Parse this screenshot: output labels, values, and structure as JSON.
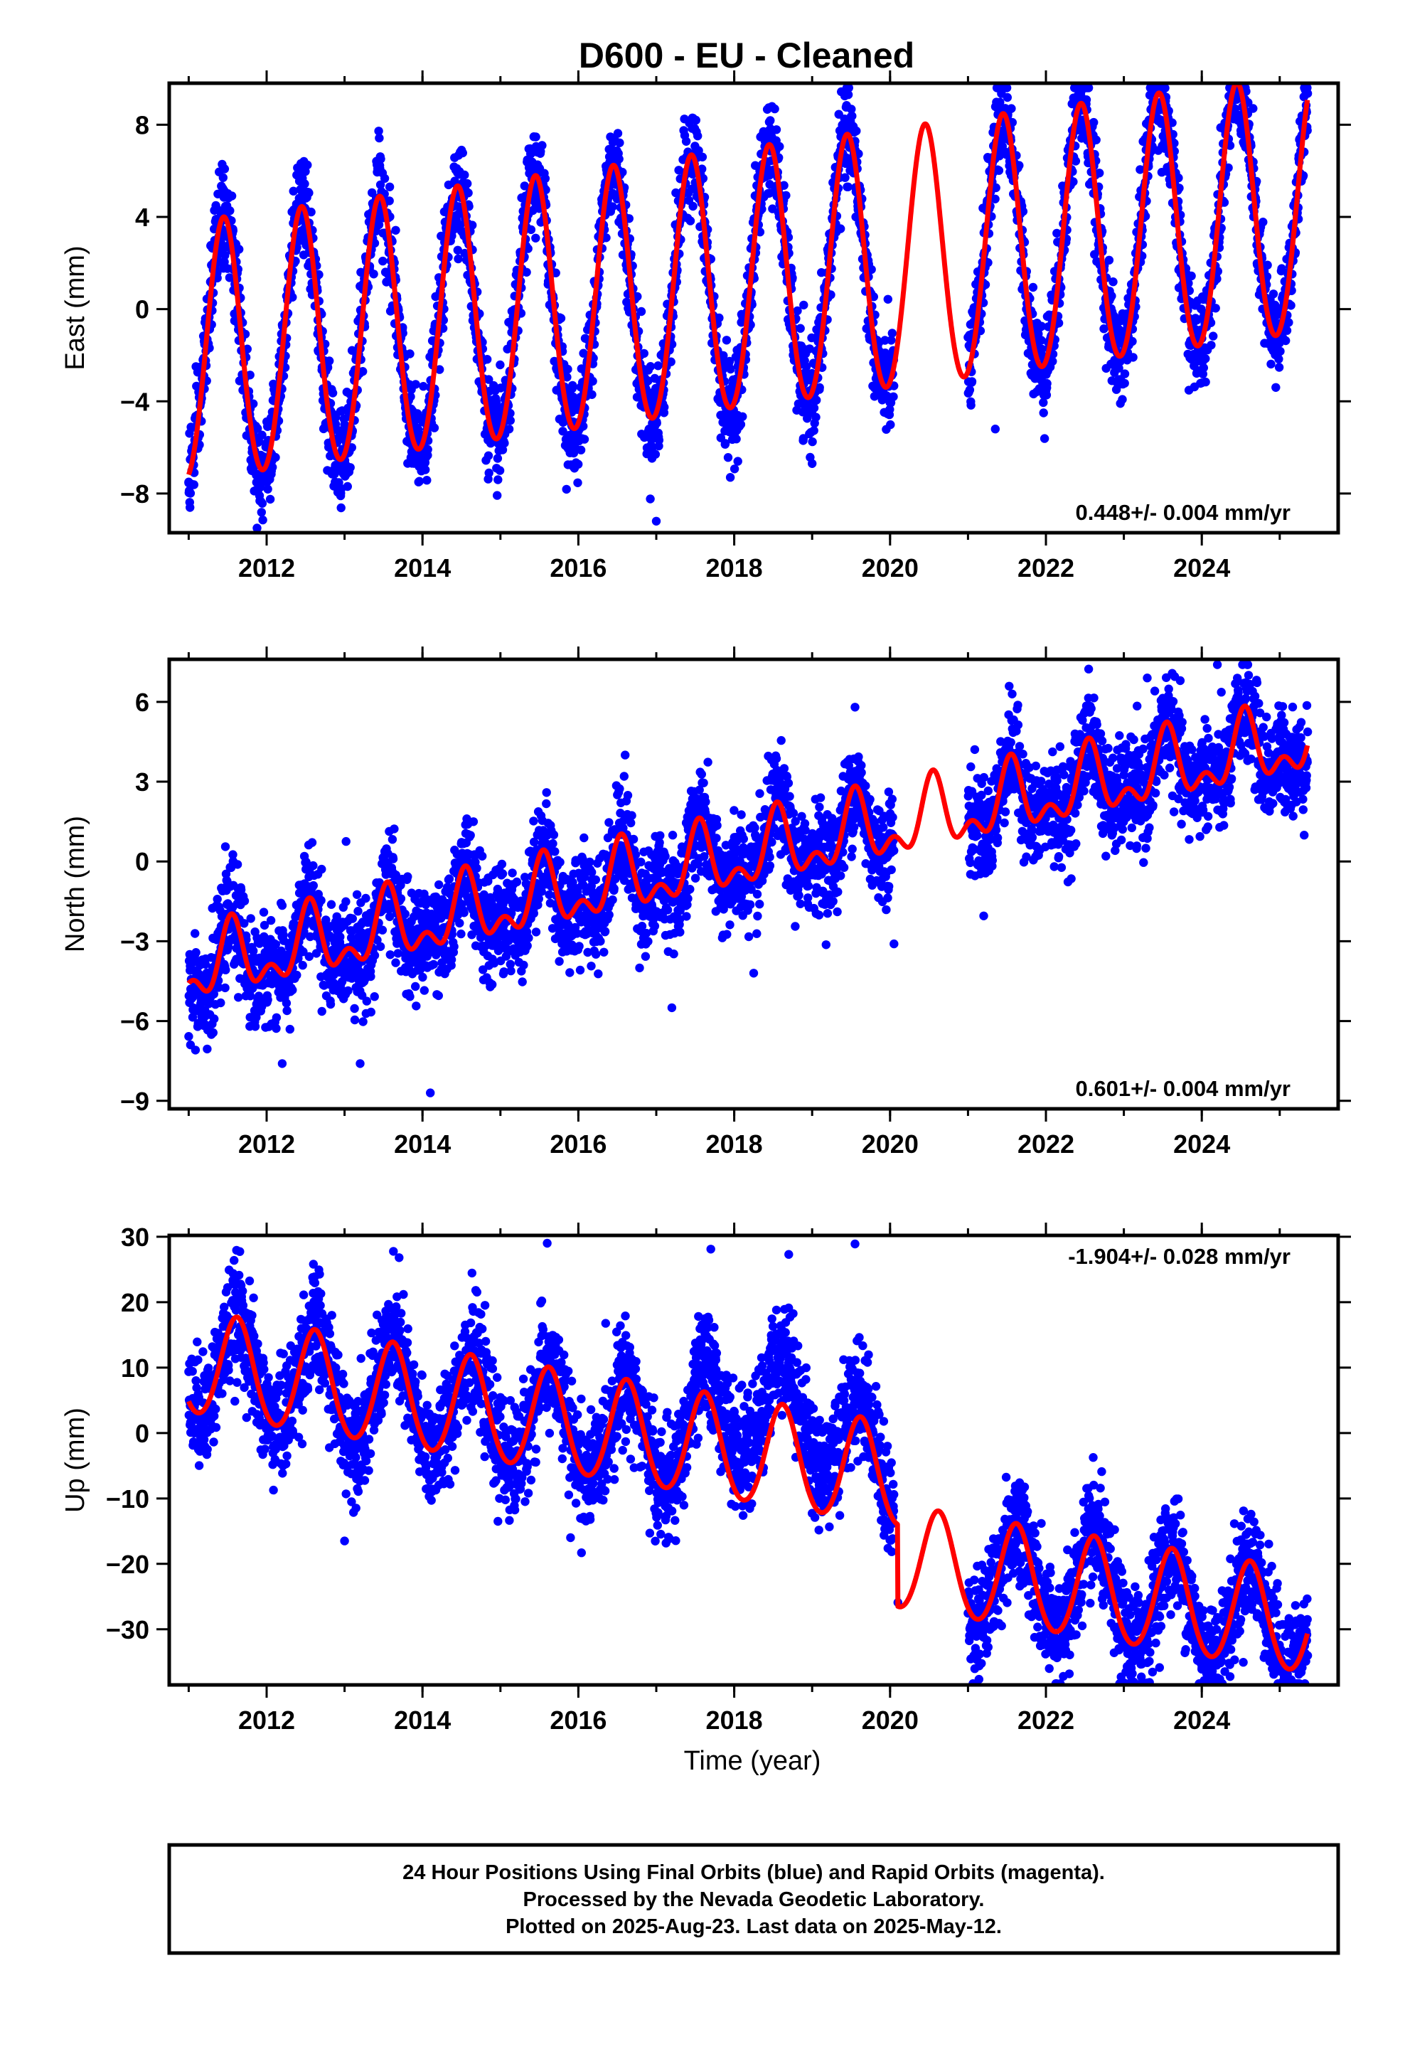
{
  "title": "D600  - EU - Cleaned",
  "x_label": "Time (year)",
  "colors": {
    "final_orbits": "#0000ff",
    "rapid_orbits": "#ff00ff",
    "model": "#ff0000",
    "frame": "#000000"
  },
  "chart_data": [
    {
      "type": "scatter",
      "component": "East",
      "ylabel": "East (mm)",
      "xlim": [
        2010.75,
        2025.75
      ],
      "ylim": [
        -9.7,
        9.8
      ],
      "x_ticks": [
        2012,
        2014,
        2016,
        2018,
        2020,
        2022,
        2024
      ],
      "y_ticks": [
        -8,
        -4,
        0,
        4,
        8
      ],
      "rate_text": "0.448+/- 0.004 mm/yr",
      "rate_position": "bottom-right",
      "model": {
        "offset": -2.1,
        "rate": 0.448,
        "annual_amplitude": 5.6,
        "annual_peak_year_fraction": 0.45,
        "semiannual_amplitude": 0.3
      },
      "gap": [
        2020.05,
        2021.0
      ],
      "series": [
        {
          "key": "final_orbits",
          "marker": "dot",
          "points": [
            [
              2011.0,
              -7.5
            ],
            [
              2011.35,
              3.9
            ],
            [
              2011.95,
              -7.4
            ],
            [
              2012.4,
              3.0
            ],
            [
              2012.95,
              -8.1
            ],
            [
              2013.35,
              4.2
            ],
            [
              2013.95,
              -7.5
            ],
            [
              2014.35,
              3.5
            ],
            [
              2014.95,
              -6.9
            ],
            [
              2015.45,
              4.4
            ],
            [
              2015.95,
              -6.9
            ],
            [
              2016.4,
              4.9
            ],
            [
              2017.0,
              -9.2
            ],
            [
              2017.4,
              5.9
            ],
            [
              2017.95,
              -7.3
            ],
            [
              2018.45,
              5.8
            ],
            [
              2019.0,
              -6.7
            ],
            [
              2019.45,
              5.3
            ],
            [
              2021.5,
              6.7
            ],
            [
              2021.35,
              -5.2
            ],
            [
              2022.4,
              8.4
            ],
            [
              2023.45,
              9.4
            ],
            [
              2024.45,
              9.1
            ],
            [
              2024.0,
              -3.2
            ],
            [
              2025.35,
              7.9
            ],
            [
              2024.95,
              -3.4
            ]
          ]
        },
        {
          "key": "model_fit",
          "marker": "line"
        }
      ]
    },
    {
      "type": "scatter",
      "component": "North",
      "ylabel": "North (mm)",
      "xlim": [
        2010.75,
        2025.75
      ],
      "ylim": [
        -9.3,
        7.6
      ],
      "x_ticks": [
        2012,
        2014,
        2016,
        2018,
        2020,
        2022,
        2024
      ],
      "y_ticks": [
        -9,
        -6,
        -3,
        0,
        3,
        6
      ],
      "rate_text": "0.601+/- 0.004 mm/yr",
      "rate_position": "bottom-right",
      "model": {
        "offset": -4.1,
        "rate": 0.601,
        "annual_amplitude": 1.1,
        "annual_peak_year_fraction": 0.55,
        "semiannual_amplitude": 0.7
      },
      "gap": [
        2020.05,
        2021.0
      ],
      "series": [
        {
          "key": "final_orbits",
          "marker": "dot",
          "points": [
            [
              2012.2,
              -7.6
            ],
            [
              2014.1,
              -8.7
            ],
            [
              2013.2,
              -7.6
            ],
            [
              2016.6,
              4.0
            ],
            [
              2019.55,
              5.8
            ],
            [
              2023.3,
              6.9
            ],
            [
              2024.2,
              7.4
            ],
            [
              2024.6,
              7.0
            ],
            [
              2017.2,
              -5.5
            ],
            [
              2018.25,
              -4.2
            ],
            [
              2020.05,
              -3.1
            ]
          ]
        },
        {
          "key": "model_fit",
          "marker": "line"
        }
      ]
    },
    {
      "type": "scatter",
      "component": "Up",
      "ylabel": "Up (mm)",
      "xlim": [
        2010.75,
        2025.75
      ],
      "ylim": [
        -38.5,
        30.2
      ],
      "x_ticks": [
        2012,
        2014,
        2016,
        2018,
        2020,
        2022,
        2024
      ],
      "y_ticks": [
        -30,
        -20,
        -10,
        0,
        10,
        20,
        30
      ],
      "rate_text": "-1.904+/- 0.028 mm/yr",
      "rate_position": "top-right",
      "model": {
        "offset": 10.5,
        "rate": -1.904,
        "annual_amplitude": 7.8,
        "annual_peak_year_fraction": 0.62,
        "semiannual_amplitude": 0.6
      },
      "gap": [
        2020.05,
        2021.0
      ],
      "series": [
        {
          "key": "final_orbits",
          "marker": "dot",
          "points": [
            [
              2011.6,
              21.5
            ],
            [
              2012.6,
              25.8
            ],
            [
              2013.7,
              26.8
            ],
            [
              2015.6,
              29.0
            ],
            [
              2017.7,
              28.1
            ],
            [
              2018.7,
              27.3
            ],
            [
              2019.55,
              28.9
            ],
            [
              2013.0,
              -16.5
            ],
            [
              2015.9,
              -16.0
            ],
            [
              2020.1,
              -25.9
            ],
            [
              2021.1,
              -33.5
            ],
            [
              2022.3,
              -36.8
            ],
            [
              2023.3,
              -35.1
            ],
            [
              2024.0,
              -36.1
            ],
            [
              2025.2,
              -34.5
            ]
          ]
        },
        {
          "key": "model_fit",
          "marker": "line"
        }
      ]
    }
  ],
  "footer": {
    "line1": "24 Hour Positions Using Final Orbits (blue) and Rapid Orbits (magenta).",
    "line2": "Processed by the Nevada Geodetic Laboratory.",
    "line3": "Plotted on 2025-Aug-23. Last data on 2025-May-12."
  }
}
